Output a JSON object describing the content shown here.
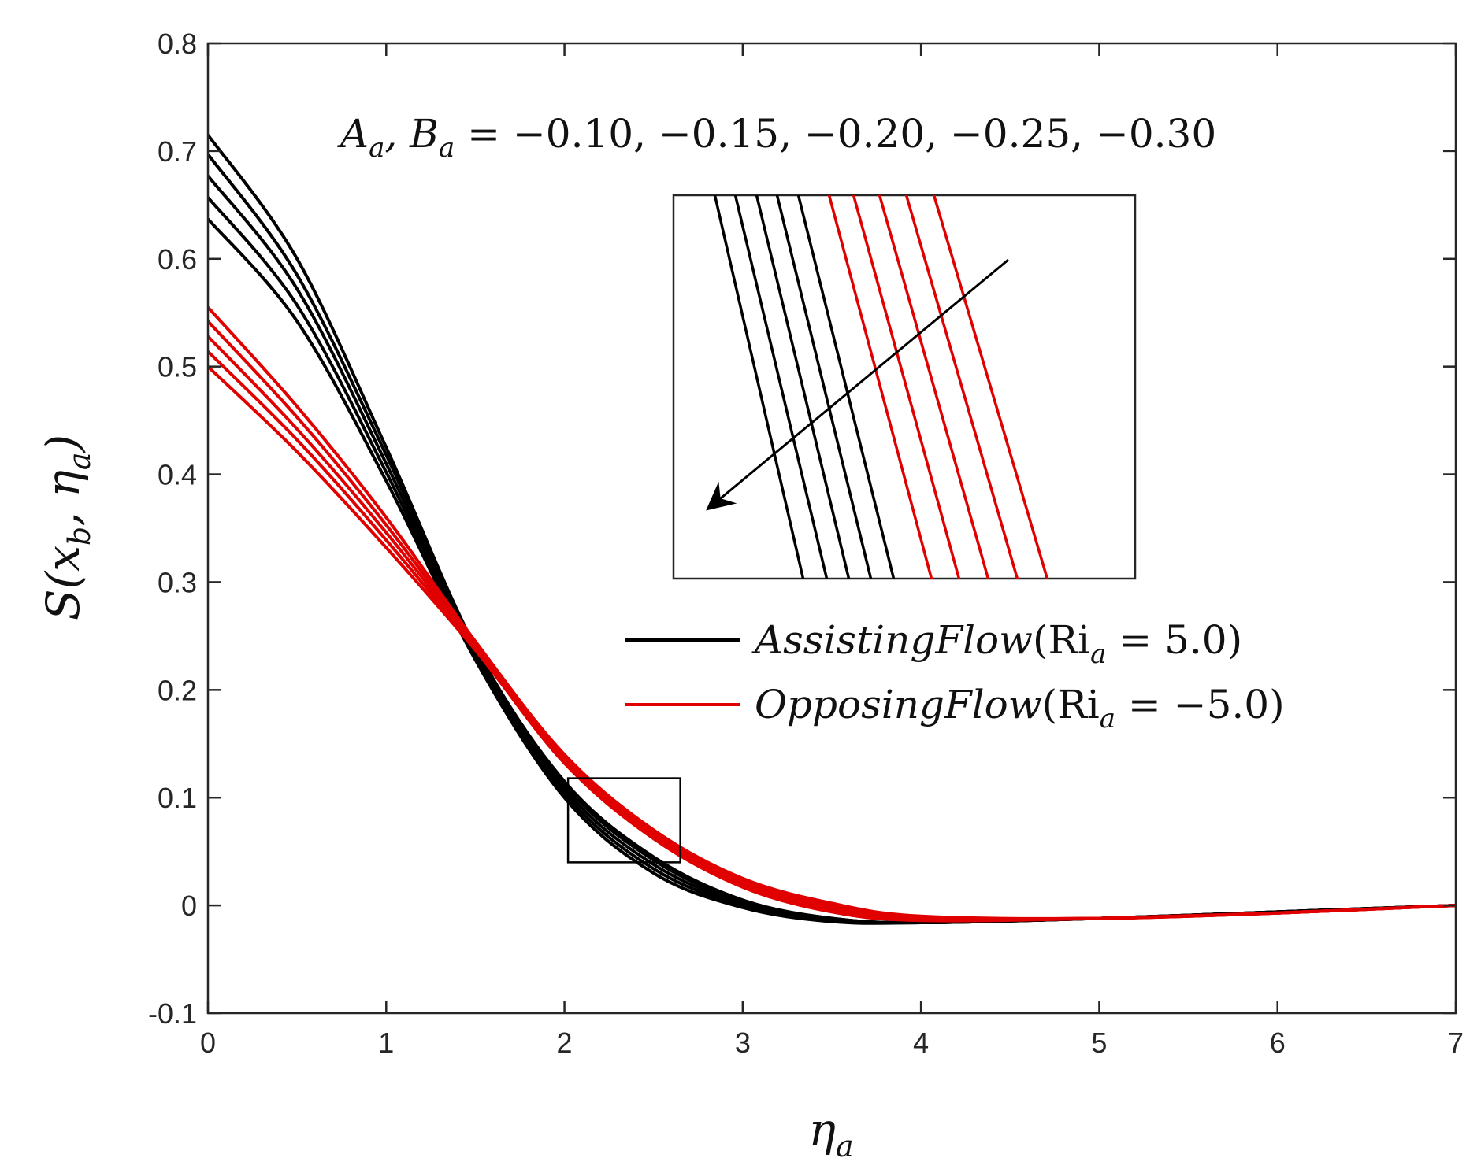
{
  "chart_data": {
    "type": "line",
    "xlabel": "η",
    "xlabel_sub": "a",
    "ylabel": {
      "main": "S(x",
      "sub1": "b",
      "mid": ", η",
      "sub2": "a",
      "end": ")"
    },
    "xlim": [
      0,
      7
    ],
    "ylim": [
      -0.1,
      0.8
    ],
    "xticks": [
      0,
      1,
      2,
      3,
      4,
      5,
      6,
      7
    ],
    "yticks": [
      -0.1,
      0,
      0.1,
      0.2,
      0.3,
      0.4,
      0.5,
      0.6,
      0.7,
      0.8
    ],
    "xtick_labels": [
      "0",
      "1",
      "2",
      "3",
      "4",
      "5",
      "6",
      "7"
    ],
    "ytick_labels": [
      "-0.1",
      "0",
      "0.1",
      "0.2",
      "0.3",
      "0.4",
      "0.5",
      "0.6",
      "0.7",
      "0.8"
    ],
    "grid": false,
    "annotation": {
      "lhs_a": "A",
      "lhs_a_sub": "a",
      "lhs_b": ", B",
      "lhs_b_sub": "a",
      "rhs": " = −0.10, −0.15, −0.20, −0.25, −0.30"
    },
    "legend": {
      "placement": "center-right",
      "entries": [
        {
          "text_main": "AssistingFlow",
          "text_open": "(Ri",
          "sub": "a",
          "text_close": " = 5.0)",
          "color": "#000000"
        },
        {
          "text_main": "OpposingFlow",
          "text_open": "(Ri",
          "sub": "a",
          "text_close": " = −5.0)",
          "color": "#e00000"
        }
      ]
    },
    "parameter_values": [
      -0.1,
      -0.15,
      -0.2,
      -0.25,
      -0.3
    ],
    "series": [
      {
        "group": "Assisting Flow",
        "color": "#000000",
        "x": [
          0,
          0.5,
          1,
          1.5,
          2,
          2.5,
          3,
          3.5,
          4,
          5,
          6,
          7
        ],
        "y": [
          0.715,
          0.6,
          0.425,
          0.24,
          0.115,
          0.045,
          0.005,
          -0.012,
          -0.016,
          -0.012,
          -0.006,
          0
        ]
      },
      {
        "group": "Assisting Flow",
        "color": "#000000",
        "x": [
          0,
          0.5,
          1,
          1.5,
          2,
          2.5,
          3,
          3.5,
          4,
          5,
          6,
          7
        ],
        "y": [
          0.697,
          0.585,
          0.418,
          0.237,
          0.112,
          0.042,
          0.004,
          -0.012,
          -0.016,
          -0.012,
          -0.006,
          0
        ]
      },
      {
        "group": "Assisting Flow",
        "color": "#000000",
        "x": [
          0,
          0.5,
          1,
          1.5,
          2,
          2.5,
          3,
          3.5,
          4,
          5,
          6,
          7
        ],
        "y": [
          0.677,
          0.572,
          0.41,
          0.234,
          0.108,
          0.038,
          0.002,
          -0.013,
          -0.016,
          -0.012,
          -0.006,
          0
        ]
      },
      {
        "group": "Assisting Flow",
        "color": "#000000",
        "x": [
          0,
          0.5,
          1,
          1.5,
          2,
          2.5,
          3,
          3.5,
          4,
          5,
          6,
          7
        ],
        "y": [
          0.657,
          0.557,
          0.402,
          0.231,
          0.104,
          0.034,
          0.0,
          -0.014,
          -0.016,
          -0.012,
          -0.006,
          0
        ]
      },
      {
        "group": "Assisting Flow",
        "color": "#000000",
        "x": [
          0,
          0.5,
          1,
          1.5,
          2,
          2.5,
          3,
          3.5,
          4,
          5,
          6,
          7
        ],
        "y": [
          0.637,
          0.542,
          0.394,
          0.228,
          0.1,
          0.03,
          -0.002,
          -0.015,
          -0.016,
          -0.012,
          -0.006,
          0
        ]
      },
      {
        "group": "Opposing Flow",
        "color": "#e00000",
        "x": [
          0,
          0.5,
          1,
          1.5,
          2,
          2.5,
          3,
          3.5,
          4,
          5,
          6,
          7
        ],
        "y": [
          0.555,
          0.463,
          0.36,
          0.245,
          0.14,
          0.07,
          0.025,
          0.002,
          -0.01,
          -0.012,
          -0.007,
          0
        ]
      },
      {
        "group": "Opposing Flow",
        "color": "#e00000",
        "x": [
          0,
          0.5,
          1,
          1.5,
          2,
          2.5,
          3,
          3.5,
          4,
          5,
          6,
          7
        ],
        "y": [
          0.542,
          0.453,
          0.353,
          0.243,
          0.138,
          0.068,
          0.023,
          0.0,
          -0.011,
          -0.012,
          -0.007,
          0
        ]
      },
      {
        "group": "Opposing Flow",
        "color": "#e00000",
        "x": [
          0,
          0.5,
          1,
          1.5,
          2,
          2.5,
          3,
          3.5,
          4,
          5,
          6,
          7
        ],
        "y": [
          0.528,
          0.442,
          0.346,
          0.241,
          0.136,
          0.066,
          0.021,
          -0.002,
          -0.012,
          -0.012,
          -0.007,
          0
        ]
      },
      {
        "group": "Opposing Flow",
        "color": "#e00000",
        "x": [
          0,
          0.5,
          1,
          1.5,
          2,
          2.5,
          3,
          3.5,
          4,
          5,
          6,
          7
        ],
        "y": [
          0.514,
          0.432,
          0.339,
          0.239,
          0.134,
          0.064,
          0.019,
          -0.004,
          -0.013,
          -0.012,
          -0.007,
          0
        ]
      },
      {
        "group": "Opposing Flow",
        "color": "#e00000",
        "x": [
          0,
          0.5,
          1,
          1.5,
          2,
          2.5,
          3,
          3.5,
          4,
          5,
          6,
          7
        ],
        "y": [
          0.5,
          0.421,
          0.332,
          0.237,
          0.132,
          0.062,
          0.017,
          -0.006,
          -0.014,
          -0.012,
          -0.007,
          0
        ]
      }
    ],
    "zoom_region": {
      "x": [
        2.02,
        2.65
      ],
      "y": [
        0.04,
        0.118
      ]
    },
    "inset_arrow_direction": "toward decreasing parameter (lower-left)"
  }
}
